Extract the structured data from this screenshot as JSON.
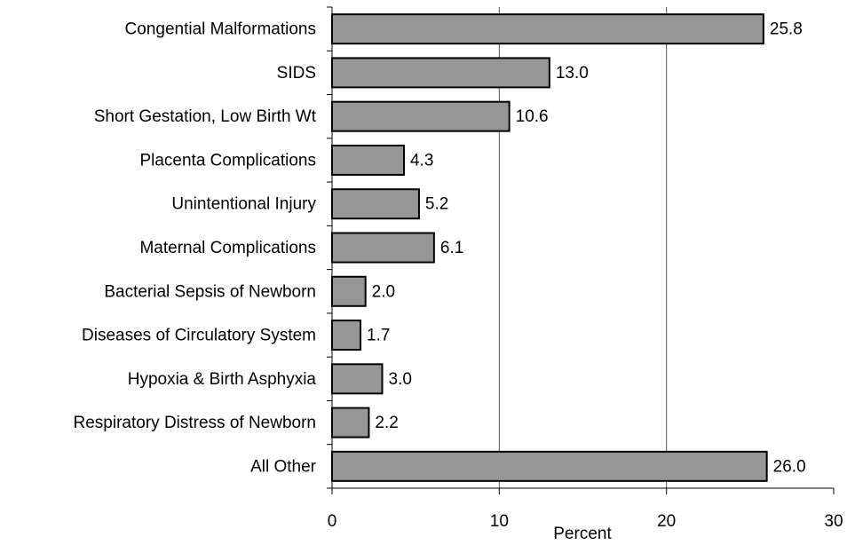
{
  "chart_data": {
    "type": "barh",
    "x_label": "Percent",
    "categories": [
      "Congential Malformations",
      "SIDS",
      "Short Gestation, Low Birth Wt",
      "Placenta Complications",
      "Unintentional Injury",
      "Maternal Complications",
      "Bacterial Sepsis of Newborn",
      "Diseases of Circulatory System",
      "Hypoxia & Birth Asphyxia",
      "Respiratory Distress of Newborn",
      "All Other"
    ],
    "values": [
      25.8,
      13,
      10.6,
      4.3,
      5.2,
      6.1,
      2,
      1.7,
      3,
      2.2,
      26
    ],
    "value_labels": [
      "25.8",
      "13.0",
      "10.6",
      "4.3",
      "5.2",
      "6.1",
      "2.0",
      "1.7",
      "3.0",
      "2.2",
      "26.0"
    ],
    "color": "#969696",
    "xlim": [
      0,
      30
    ],
    "xticks": [
      0,
      10,
      20,
      30
    ],
    "grid": true
  }
}
